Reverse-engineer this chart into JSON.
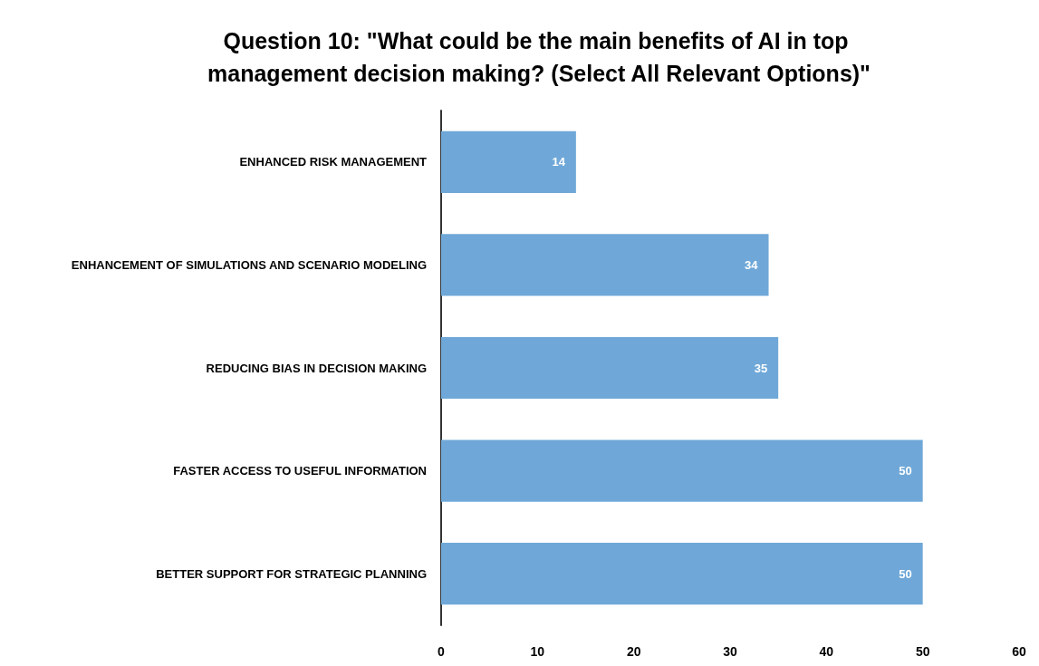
{
  "chart_data": {
    "type": "bar",
    "orientation": "horizontal",
    "title": "Question 10: \"What could be the main benefits of AI in top management decision making? (Select All Relevant Options)\"",
    "categories": [
      "ENHANCED RISK MANAGEMENT",
      "ENHANCEMENT OF SIMULATIONS AND SCENARIO MODELING",
      "REDUCING BIAS IN DECISION MAKING",
      "FASTER ACCESS TO USEFUL INFORMATION",
      "BETTER SUPPORT FOR STRATEGIC PLANNING"
    ],
    "values": [
      14,
      34,
      35,
      50,
      50
    ],
    "color": "#6fa8d8",
    "xlim": [
      0,
      60
    ],
    "xticks": [
      0,
      10,
      20,
      30,
      40,
      50,
      60
    ],
    "data_labels": true,
    "grid": false
  }
}
